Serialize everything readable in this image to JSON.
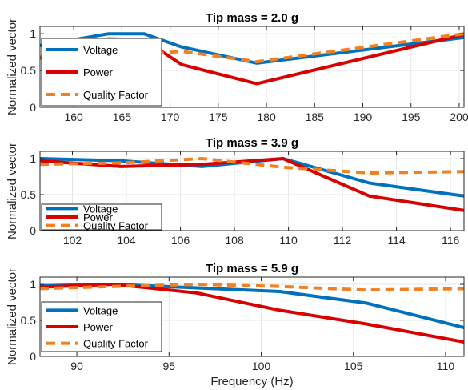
{
  "chart_data": [
    {
      "type": "line",
      "title": "Tip mass = 2.0 g",
      "xlabel": "",
      "ylabel": "Normalized vector",
      "xlim": [
        156.5,
        200.5
      ],
      "ylim": [
        0,
        1.1
      ],
      "xticks": [
        160,
        165,
        170,
        175,
        180,
        185,
        190,
        195,
        200
      ],
      "xtick_labels": [
        "160",
        "165",
        "170",
        "175",
        "180",
        "185",
        "190",
        "195",
        "200"
      ],
      "yticks": [
        0,
        0.5,
        1
      ],
      "ytick_labels": [
        "0",
        "0.5",
        "1"
      ],
      "grid": true,
      "legend_position": "bottom-left",
      "series": [
        {
          "name": "Voltage",
          "color": "#0072bd",
          "style": "solid",
          "x": [
            156.5,
            163.6,
            167.3,
            171.2,
            179.0,
            200.5
          ],
          "y": [
            0.84,
            1.0,
            1.0,
            0.82,
            0.6,
            0.95
          ]
        },
        {
          "name": "Power",
          "color": "#d90000",
          "style": "solid",
          "x": [
            156.5,
            163.6,
            167.3,
            171.2,
            179.0,
            200.5
          ],
          "y": [
            0.67,
            0.93,
            0.92,
            0.58,
            0.32,
            0.99
          ]
        },
        {
          "name": "Quality Factor",
          "color": "#f28020",
          "style": "dashed",
          "x": [
            156.5,
            163.6,
            167.3,
            171.2,
            179.0,
            200.5
          ],
          "y": [
            0.68,
            0.71,
            0.72,
            0.76,
            0.62,
            1.0
          ]
        }
      ]
    },
    {
      "type": "line",
      "title": "Tip mass = 3.9 g",
      "xlabel": "",
      "ylabel": "Normalized vector",
      "xlim": [
        100.8,
        116.5
      ],
      "ylim": [
        0,
        1.1
      ],
      "xticks": [
        102,
        104,
        106,
        108,
        110,
        112,
        114,
        116
      ],
      "xtick_labels": [
        "102",
        "104",
        "106",
        "108",
        "110",
        "112",
        "114",
        "116"
      ],
      "yticks": [
        0,
        0.5,
        1
      ],
      "ytick_labels": [
        "0",
        "0.5",
        "1"
      ],
      "grid": true,
      "legend_position": "bottom-left",
      "series": [
        {
          "name": "Voltage",
          "color": "#0072bd",
          "style": "solid",
          "x": [
            100.8,
            103.8,
            106.8,
            109.8,
            113.0,
            116.5
          ],
          "y": [
            1.0,
            0.97,
            0.89,
            1.0,
            0.66,
            0.48
          ]
        },
        {
          "name": "Power",
          "color": "#d90000",
          "style": "solid",
          "x": [
            100.8,
            103.8,
            106.8,
            109.8,
            113.0,
            116.5
          ],
          "y": [
            0.97,
            0.89,
            0.92,
            1.0,
            0.48,
            0.28
          ]
        },
        {
          "name": "Quality Factor",
          "color": "#f28020",
          "style": "dashed",
          "x": [
            100.8,
            103.8,
            106.8,
            109.8,
            113.0,
            116.5
          ],
          "y": [
            0.92,
            0.94,
            1.0,
            0.88,
            0.8,
            0.82
          ]
        }
      ]
    },
    {
      "type": "line",
      "title": "Tip mass = 5.9 g",
      "xlabel": "Frequency (Hz)",
      "ylabel": "Normalized vector",
      "xlim": [
        88.0,
        111.0
      ],
      "ylim": [
        0,
        1.1
      ],
      "xticks": [
        90,
        95,
        100,
        105,
        110
      ],
      "xtick_labels": [
        "90",
        "95",
        "100",
        "105",
        "110"
      ],
      "yticks": [
        0,
        0.5,
        1
      ],
      "ytick_labels": [
        "0",
        "0.5",
        "1"
      ],
      "grid": true,
      "legend_position": "bottom-left",
      "series": [
        {
          "name": "Voltage",
          "color": "#0072bd",
          "style": "solid",
          "x": [
            88.0,
            92.0,
            96.5,
            101.0,
            105.7,
            111.0
          ],
          "y": [
            0.98,
            1.0,
            0.95,
            0.9,
            0.74,
            0.4
          ]
        },
        {
          "name": "Power",
          "color": "#d90000",
          "style": "solid",
          "x": [
            88.0,
            92.0,
            96.5,
            101.0,
            105.7,
            111.0
          ],
          "y": [
            0.96,
            1.0,
            0.88,
            0.64,
            0.45,
            0.2
          ]
        },
        {
          "name": "Quality Factor",
          "color": "#f28020",
          "style": "dashed",
          "x": [
            88.0,
            92.0,
            96.5,
            101.0,
            105.7,
            111.0
          ],
          "y": [
            0.94,
            0.97,
            1.0,
            0.97,
            0.92,
            0.94
          ]
        }
      ]
    }
  ]
}
